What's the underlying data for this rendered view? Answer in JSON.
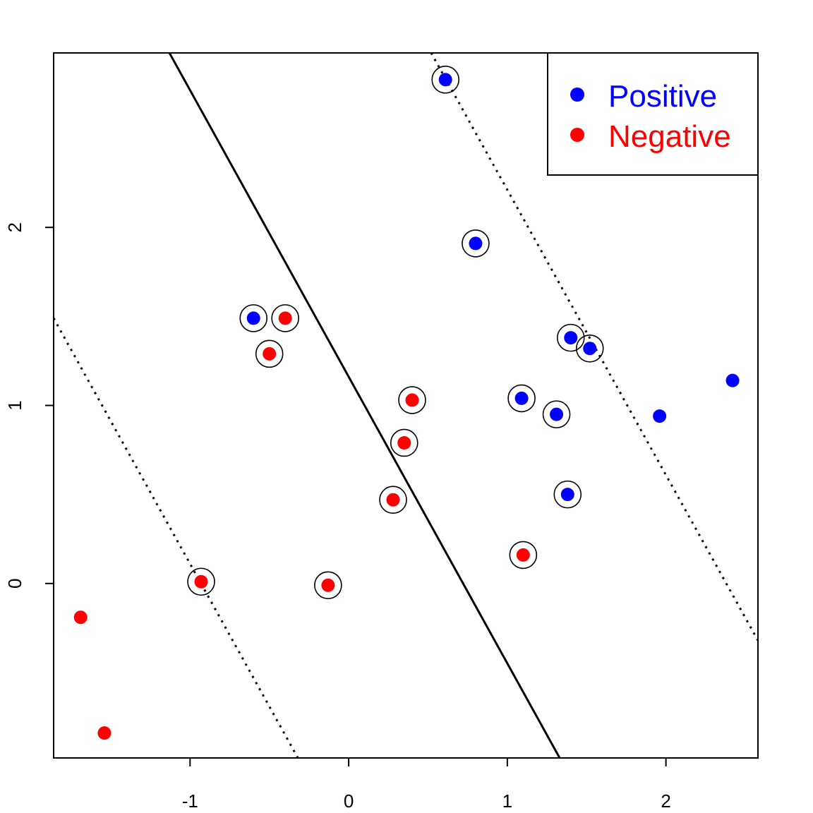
{
  "chart_data": {
    "type": "scatter",
    "title": "",
    "xlabel": "",
    "ylabel": "",
    "xlim": [
      -1.86,
      2.58
    ],
    "ylim": [
      -0.98,
      2.98
    ],
    "x_ticks": [
      -1,
      0,
      1,
      2
    ],
    "y_ticks": [
      0,
      1,
      2
    ],
    "x_tick_labels": [
      "-1",
      "0",
      "1",
      "2"
    ],
    "y_tick_labels": [
      "0",
      "1",
      "2"
    ],
    "grid": false,
    "legend_position": "top-right",
    "series": [
      {
        "name": "Positive",
        "color": "#0000ff",
        "points": [
          {
            "x": 0.61,
            "y": 2.83,
            "circled": true
          },
          {
            "x": 0.8,
            "y": 1.91,
            "circled": true
          },
          {
            "x": -0.6,
            "y": 1.49,
            "circled": true
          },
          {
            "x": 1.4,
            "y": 1.38,
            "circled": true
          },
          {
            "x": 1.52,
            "y": 1.32,
            "circled": true
          },
          {
            "x": 1.09,
            "y": 1.04,
            "circled": true
          },
          {
            "x": 1.31,
            "y": 0.95,
            "circled": true
          },
          {
            "x": 1.38,
            "y": 0.5,
            "circled": true
          },
          {
            "x": 1.96,
            "y": 0.94,
            "circled": false
          },
          {
            "x": 2.42,
            "y": 1.14,
            "circled": false
          }
        ]
      },
      {
        "name": "Negative",
        "color": "#ff0000",
        "points": [
          {
            "x": -0.4,
            "y": 1.49,
            "circled": true
          },
          {
            "x": -0.5,
            "y": 1.29,
            "circled": true
          },
          {
            "x": 0.4,
            "y": 1.03,
            "circled": true
          },
          {
            "x": 0.35,
            "y": 0.79,
            "circled": true
          },
          {
            "x": 0.28,
            "y": 0.47,
            "circled": true
          },
          {
            "x": 1.1,
            "y": 0.16,
            "circled": true
          },
          {
            "x": -0.93,
            "y": 0.01,
            "circled": true
          },
          {
            "x": -0.13,
            "y": -0.01,
            "circled": true
          },
          {
            "x": -1.69,
            "y": -0.19,
            "circled": false
          },
          {
            "x": -1.54,
            "y": -0.84,
            "circled": false
          }
        ]
      }
    ],
    "lines": [
      {
        "style": "solid",
        "x1": -1.13,
        "y1": 2.98,
        "x2": 1.33,
        "y2": -0.98
      },
      {
        "style": "dotted",
        "x1": -1.86,
        "y1": 1.49,
        "x2": -0.32,
        "y2": -0.98
      },
      {
        "style": "dotted",
        "x1": 0.52,
        "y1": 2.98,
        "x2": 2.58,
        "y2": -0.32
      }
    ]
  }
}
